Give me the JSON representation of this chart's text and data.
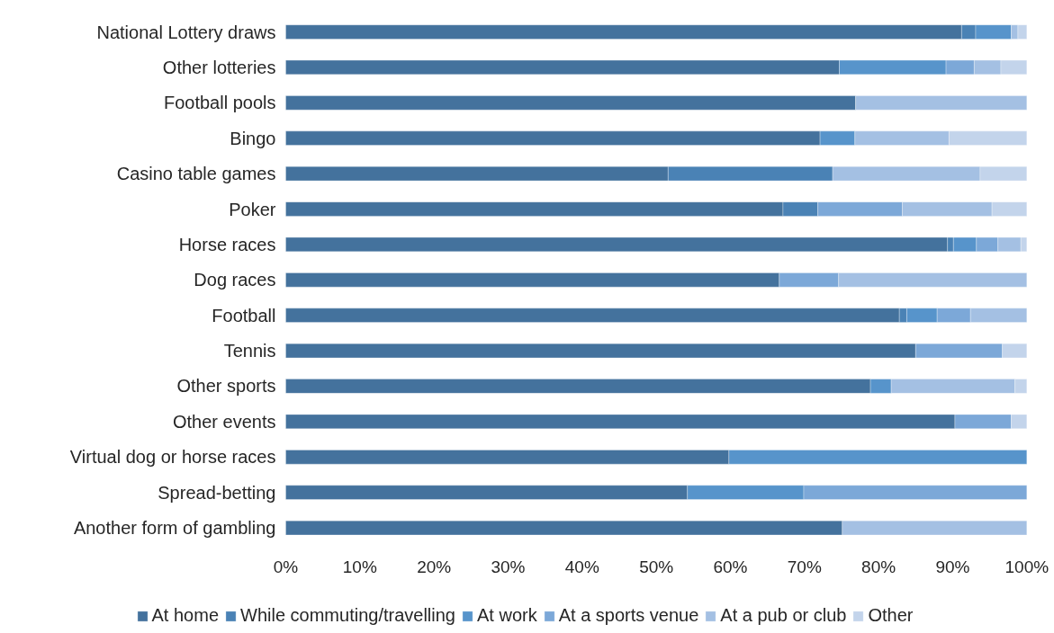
{
  "chart_data": {
    "type": "bar",
    "orientation": "horizontal",
    "stacked": true,
    "categories": [
      "National Lottery draws",
      "Other lotteries",
      "Football pools",
      "Bingo",
      "Casino table games",
      "Poker",
      "Horse races",
      "Dog races",
      "Football",
      "Tennis",
      "Other sports",
      "Other events",
      "Virtual dog or horse races",
      "Spread-betting",
      "Another form of gambling"
    ],
    "series": [
      {
        "name": "At home",
        "color": "#44729d",
        "values": [
          91.2,
          74.7,
          76.9,
          72.1,
          51.6,
          67.1,
          89.3,
          66.6,
          82.8,
          85.0,
          78.9,
          90.3,
          59.8,
          54.2,
          75.1
        ]
      },
      {
        "name": "While commuting/travelling",
        "color": "#4a82b5",
        "values": [
          1.9,
          null,
          null,
          null,
          22.2,
          4.7,
          0.8,
          null,
          1.0,
          null,
          null,
          null,
          null,
          null,
          null
        ]
      },
      {
        "name": "At work",
        "color": "#5794cb",
        "values": [
          4.8,
          14.4,
          null,
          4.7,
          null,
          null,
          3.1,
          null,
          4.1,
          null,
          2.8,
          null,
          40.2,
          15.7,
          null
        ]
      },
      {
        "name": "At a sports venue",
        "color": "#7ca8d8",
        "values": [
          null,
          3.8,
          null,
          null,
          null,
          11.4,
          2.9,
          8.0,
          4.5,
          11.7,
          null,
          7.6,
          null,
          30.1,
          null
        ]
      },
      {
        "name": "At a pub or club",
        "color": "#a4c0e3",
        "values": [
          0.9,
          3.6,
          23.1,
          12.7,
          19.9,
          12.1,
          3.1,
          25.4,
          7.6,
          null,
          16.7,
          null,
          null,
          null,
          24.9
        ]
      },
      {
        "name": "Other",
        "color": "#c3d4eb",
        "values": [
          1.2,
          3.5,
          null,
          10.5,
          6.3,
          4.7,
          0.8,
          null,
          null,
          3.3,
          1.6,
          2.1,
          null,
          null,
          null
        ]
      }
    ],
    "xlim": [
      0,
      100
    ],
    "xticks": [
      {
        "value": 0,
        "label": "0%"
      },
      {
        "value": 10,
        "label": "10%"
      },
      {
        "value": 20,
        "label": "20%"
      },
      {
        "value": 30,
        "label": "30%"
      },
      {
        "value": 40,
        "label": "40%"
      },
      {
        "value": 50,
        "label": "50%"
      },
      {
        "value": 60,
        "label": "60%"
      },
      {
        "value": 70,
        "label": "70%"
      },
      {
        "value": 80,
        "label": "80%"
      },
      {
        "value": 90,
        "label": "90%"
      },
      {
        "value": 100,
        "label": "100%"
      }
    ],
    "grid": false,
    "legend": "bottom"
  }
}
